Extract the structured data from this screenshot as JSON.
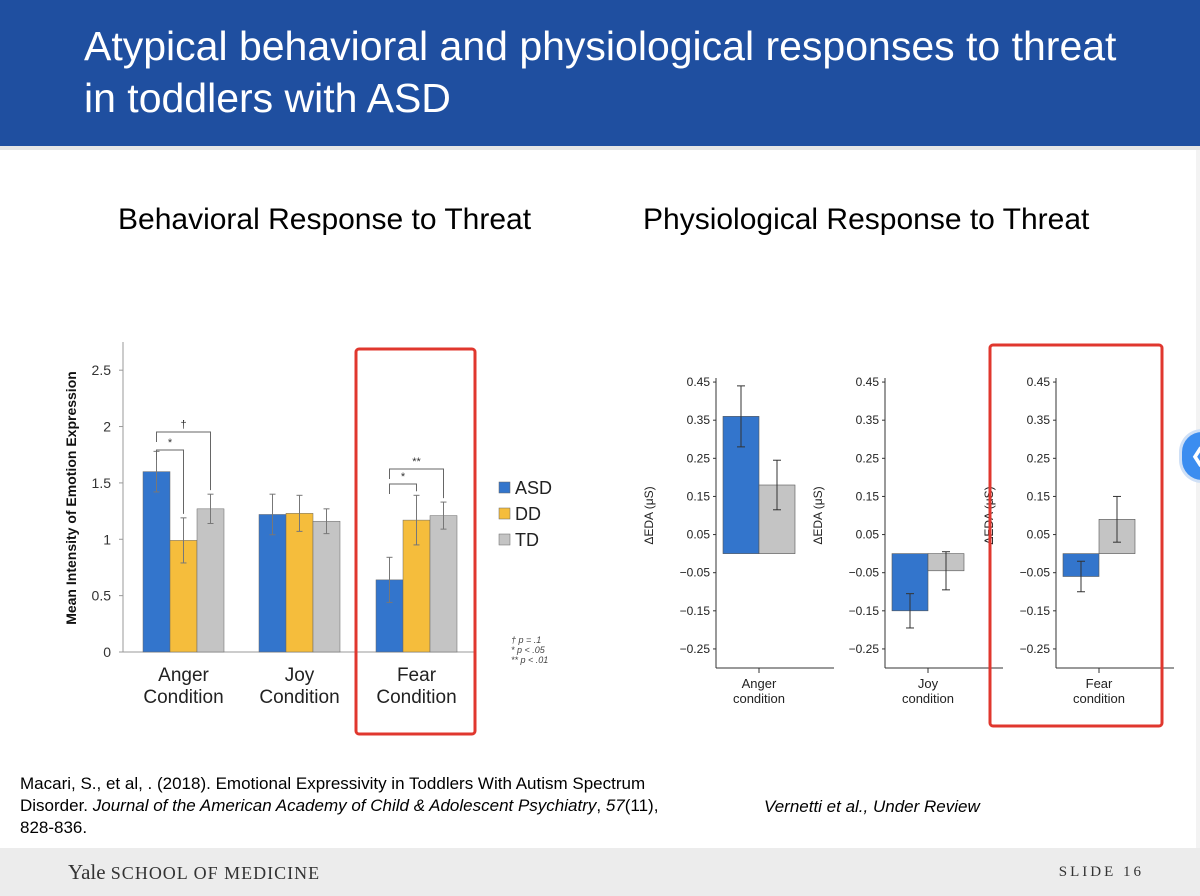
{
  "slide_title": "Atypical behavioral and physiological responses to threat in toddlers with ASD",
  "behavioral_title": "Behavioral Response to Threat",
  "physio_title": "Physiological Response to Threat",
  "colors": {
    "asd": "#3375cc",
    "dd": "#f5bd3c",
    "td": "#c4c4c4",
    "banner": "#1f4fa0",
    "highlight": "#e0372e"
  },
  "chart_data": [
    {
      "type": "bar",
      "title": "Behavioral Response to Threat",
      "ylabel": "Mean Intensity of Emotion Expression",
      "xlabel": "",
      "ylim": [
        0,
        2.75
      ],
      "yticks": [
        "0",
        "0.5",
        "1",
        "1.5",
        "2",
        "2.5"
      ],
      "ytick_values": [
        0,
        0.5,
        1,
        1.5,
        2,
        2.5
      ],
      "categories": [
        [
          "Anger",
          "Condition"
        ],
        [
          "Joy",
          "Condition"
        ],
        [
          "Fear",
          "Condition"
        ]
      ],
      "series": [
        {
          "name": "ASD",
          "values": [
            1.6,
            1.22,
            0.64
          ],
          "err": [
            0.18,
            0.18,
            0.2
          ]
        },
        {
          "name": "DD",
          "values": [
            0.99,
            1.23,
            1.17
          ],
          "err": [
            0.2,
            0.16,
            0.22
          ]
        },
        {
          "name": "TD",
          "values": [
            1.27,
            1.16,
            1.21
          ],
          "err": [
            0.13,
            0.11,
            0.12
          ]
        }
      ],
      "legend": [
        "ASD",
        "DD",
        "TD"
      ],
      "sig_markers": {
        "anger": [
          "†",
          "*"
        ],
        "fear": [
          "**",
          "*"
        ]
      },
      "sig_legend": [
        "† p = .1",
        "* p < .05",
        "** p < .01"
      ],
      "highlight": "Fear Condition"
    },
    {
      "type": "bar",
      "title": "Physiological Response to Threat",
      "ylabel": "ΔEDA (μS)",
      "ylim": [
        -0.3,
        0.5
      ],
      "yticks": [
        "0.45",
        "0.35",
        "0.25",
        "0.15",
        "0.05",
        "−0.05",
        "−0.15",
        "−0.25"
      ],
      "ytick_values": [
        0.45,
        0.35,
        0.25,
        0.15,
        0.05,
        -0.05,
        -0.15,
        -0.25
      ],
      "panels": [
        {
          "label": [
            "Anger",
            "condition"
          ],
          "values": [
            0.36,
            0.18
          ],
          "err": [
            0.08,
            0.065
          ]
        },
        {
          "label": [
            "Joy",
            "condition"
          ],
          "values": [
            -0.15,
            -0.045
          ],
          "err": [
            0.045,
            0.05
          ]
        },
        {
          "label": [
            "Fear",
            "condition"
          ],
          "values": [
            -0.06,
            0.09
          ],
          "err": [
            0.04,
            0.06
          ]
        }
      ],
      "series_names": [
        "ASD",
        "TD"
      ],
      "highlight": "Fear condition"
    }
  ],
  "citation_left": {
    "part1": "Macari, S., et al, . (2018). Emotional Expressivity in Toddlers With Autism Spectrum Disorder. ",
    "journal": "Journal of the American Academy of Child & Adolescent Psychiatry",
    "vol": "57",
    "rest": "(11), 828-836."
  },
  "citation_right": "Vernetti et al., Under Review",
  "footer": {
    "brand_main": "Yale",
    "brand_sub": "SCHOOL OF MEDICINE",
    "slide": "SLIDE 16"
  }
}
